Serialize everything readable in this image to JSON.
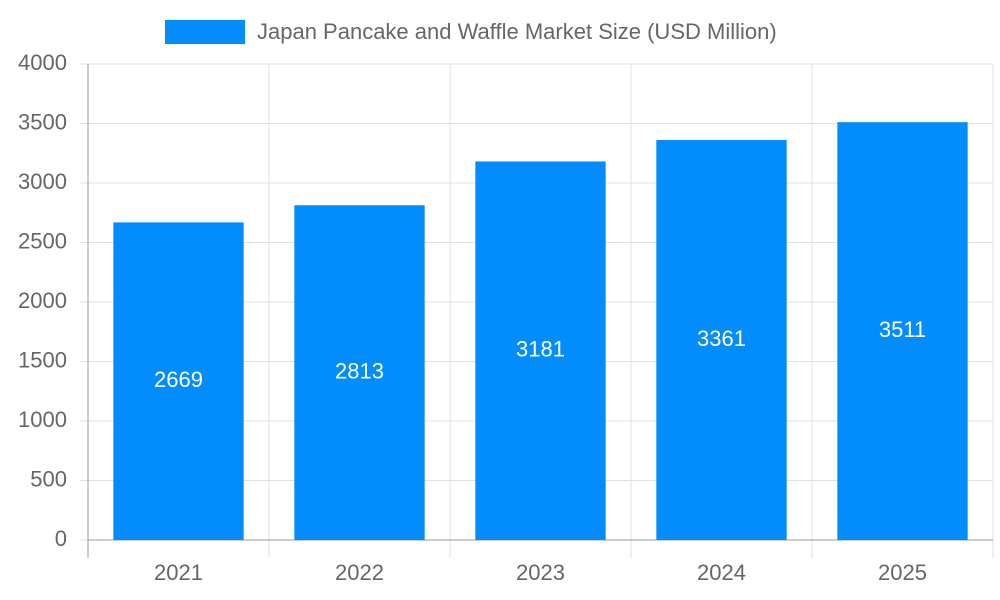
{
  "chart_data": {
    "type": "bar",
    "categories": [
      "2021",
      "2022",
      "2023",
      "2024",
      "2025"
    ],
    "series": [
      {
        "name": "Japan Pancake and Waffle Market Size (USD Million)",
        "color": "#038cfc",
        "values": [
          2669,
          2813,
          3181,
          3361,
          3511
        ]
      }
    ],
    "ylim": [
      0,
      4000
    ],
    "yticks": [
      0,
      500,
      1000,
      1500,
      2000,
      2500,
      3000,
      3500,
      4000
    ],
    "grid": true,
    "legend": "top",
    "data_labels": true
  }
}
